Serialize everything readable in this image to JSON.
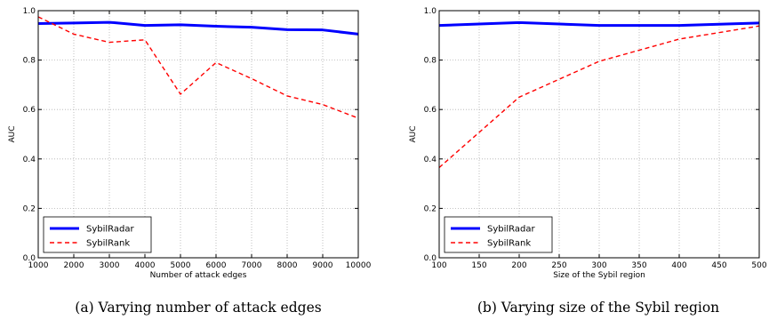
{
  "chart_data": [
    {
      "type": "line",
      "caption": "(a) Varying number of attack edges",
      "xlabel": "Number of attack edges",
      "ylabel": "AUC",
      "xlim": [
        1000,
        10000
      ],
      "ylim": [
        0.0,
        1.0
      ],
      "xticks": [
        1000,
        2000,
        3000,
        4000,
        5000,
        6000,
        7000,
        8000,
        9000,
        10000
      ],
      "xtick_labels": [
        "1000",
        "2000",
        "3000",
        "4000",
        "5000",
        "6000",
        "7000",
        "8000",
        "9000",
        "10000"
      ],
      "yticks": [
        0.0,
        0.2,
        0.4,
        0.6,
        0.8,
        1.0
      ],
      "ytick_labels": [
        "0.0",
        "0.2",
        "0.4",
        "0.6",
        "0.8",
        "1.0"
      ],
      "grid": true,
      "legend_position": "lower-left",
      "x": [
        1000,
        2000,
        3000,
        4000,
        5000,
        6000,
        7000,
        8000,
        9000,
        10000
      ],
      "series": [
        {
          "name": "SybilRadar",
          "color": "#0000ff",
          "style": "solid",
          "values": [
            0.948,
            0.95,
            0.953,
            0.94,
            0.943,
            0.937,
            0.933,
            0.923,
            0.922,
            0.905
          ]
        },
        {
          "name": "SybilRank",
          "color": "#ff0000",
          "style": "dashed",
          "values": [
            0.975,
            0.905,
            0.872,
            0.882,
            0.662,
            0.79,
            0.725,
            0.655,
            0.62,
            0.565
          ]
        }
      ]
    },
    {
      "type": "line",
      "caption": "(b) Varying size of the Sybil region",
      "xlabel": "Size of the Sybil region",
      "ylabel": "AUC",
      "xlim": [
        100,
        500
      ],
      "ylim": [
        0.0,
        1.0
      ],
      "xticks": [
        100,
        150,
        200,
        250,
        300,
        350,
        400,
        450,
        500
      ],
      "xtick_labels": [
        "100",
        "150",
        "200",
        "250",
        "300",
        "350",
        "400",
        "450",
        "500"
      ],
      "yticks": [
        0.0,
        0.2,
        0.4,
        0.6,
        0.8,
        1.0
      ],
      "ytick_labels": [
        "0.0",
        "0.2",
        "0.4",
        "0.6",
        "0.8",
        "1.0"
      ],
      "grid": true,
      "legend_position": "lower-left",
      "x": [
        100,
        200,
        300,
        400,
        500
      ],
      "series": [
        {
          "name": "SybilRadar",
          "color": "#0000ff",
          "style": "solid",
          "values": [
            0.94,
            0.952,
            0.94,
            0.94,
            0.95
          ]
        },
        {
          "name": "SybilRank",
          "color": "#ff0000",
          "style": "dashed",
          "values": [
            0.365,
            0.65,
            0.795,
            0.885,
            0.938
          ]
        }
      ]
    }
  ]
}
